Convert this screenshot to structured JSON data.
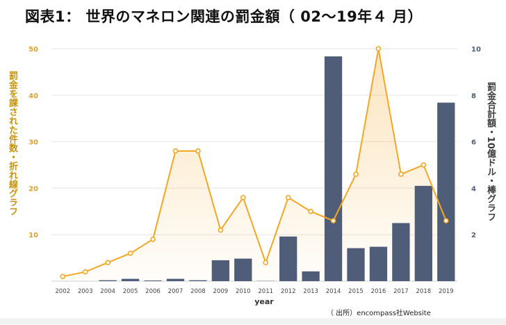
{
  "title": "図表1： 世界のマネロン関連の罰金額（ 02〜19年４ 月）",
  "source": "（ 出所）encompass社Website",
  "colors": {
    "line": "#f5a623",
    "bar": "#4f5d78",
    "left_axis_text": "#e0a030",
    "right_axis_text": "#4f5d78",
    "left_label": "#c8930a",
    "right_label": "#3b3b3b"
  },
  "chart_data": {
    "type": "bar+line",
    "xlabel": "year",
    "y_left_label": "罰金を課された件数・折れ線グラフ",
    "y_right_label": "罰金合計額・10億ドル・棒グラフ",
    "categories": [
      "2002",
      "2003",
      "2004",
      "2005",
      "2006",
      "2007",
      "2008",
      "2009",
      "2010",
      "2011",
      "2012",
      "2013",
      "2014",
      "2015",
      "2016",
      "2017",
      "2018",
      "2019"
    ],
    "y_left_range": [
      0,
      50
    ],
    "y_left_ticks": [
      10,
      20,
      30,
      40,
      50
    ],
    "y_right_range": [
      0,
      10
    ],
    "y_right_ticks": [
      2,
      4,
      6,
      8,
      10
    ],
    "grid": true,
    "series": [
      {
        "type": "bar",
        "axis": "right",
        "values": [
          0,
          0,
          0.04,
          0.1,
          0.03,
          0.1,
          0.04,
          0.9,
          0.97,
          0.01,
          1.92,
          0.42,
          9.67,
          1.42,
          1.48,
          2.5,
          4.1,
          7.68
        ]
      },
      {
        "type": "line",
        "axis": "left",
        "values": [
          1,
          2,
          4,
          6,
          9,
          28,
          28,
          11,
          18,
          4,
          18,
          15,
          13,
          23,
          50,
          23,
          25,
          13
        ]
      }
    ]
  }
}
